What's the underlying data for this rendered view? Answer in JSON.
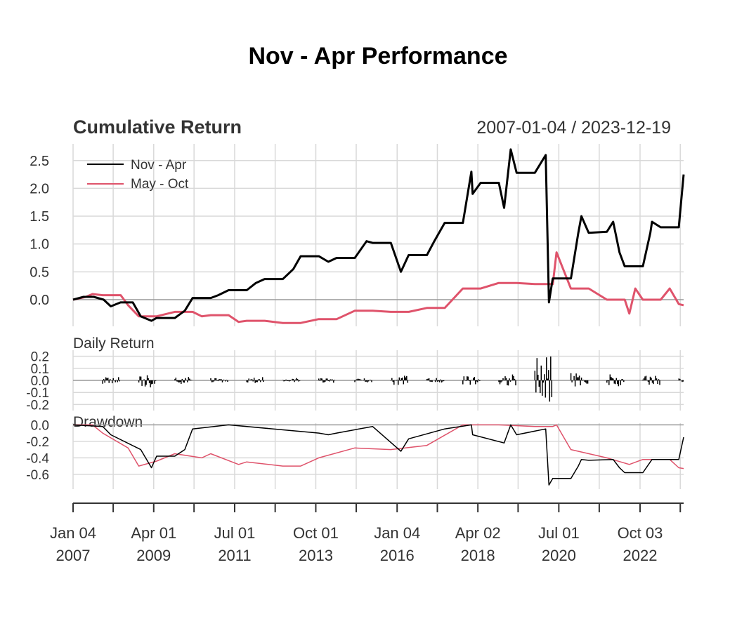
{
  "chart_data": {
    "type": "line",
    "title": "Nov - Apr Performance",
    "date_range": "2007-01-04 / 2023-12-19",
    "x_range": [
      "2007-01-04",
      "2023-12-19"
    ],
    "x_ticks": [
      {
        "date": "2007-01-04",
        "label_line1": "Jan 04",
        "label_line2": "2007"
      },
      {
        "date": "2008-02-15",
        "label_line1": "",
        "label_line2": ""
      },
      {
        "date": "2009-04-01",
        "label_line1": "Apr 01",
        "label_line2": "2009"
      },
      {
        "date": "2010-05-15",
        "label_line1": "",
        "label_line2": ""
      },
      {
        "date": "2011-07-01",
        "label_line1": "Jul 01",
        "label_line2": "2011"
      },
      {
        "date": "2012-08-15",
        "label_line1": "",
        "label_line2": ""
      },
      {
        "date": "2013-10-01",
        "label_line1": "Oct 01",
        "label_line2": "2013"
      },
      {
        "date": "2014-11-15",
        "label_line1": "",
        "label_line2": ""
      },
      {
        "date": "2016-01-04",
        "label_line1": "Jan 04",
        "label_line2": "2016"
      },
      {
        "date": "2017-02-15",
        "label_line1": "",
        "label_line2": ""
      },
      {
        "date": "2018-04-02",
        "label_line1": "Apr 02",
        "label_line2": "2018"
      },
      {
        "date": "2019-05-15",
        "label_line1": "",
        "label_line2": ""
      },
      {
        "date": "2020-07-01",
        "label_line1": "Jul 01",
        "label_line2": "2020"
      },
      {
        "date": "2021-08-15",
        "label_line1": "",
        "label_line2": ""
      },
      {
        "date": "2022-10-03",
        "label_line1": "Oct 03",
        "label_line2": "2022"
      },
      {
        "date": "2023-11-15",
        "label_line1": "",
        "label_line2": ""
      }
    ],
    "colors": {
      "nov_apr": "#000000",
      "may_oct": "#DF536B",
      "grid": "#d9d9d9",
      "zero": "#999999"
    },
    "panels": {
      "cumulative": {
        "title": "Cumulative Return",
        "ylim": [
          -0.48,
          2.8
        ],
        "yticks": [
          "0.0",
          "0.5",
          "1.0",
          "1.5",
          "2.0",
          "2.5"
        ],
        "legend": {
          "position": "top-left",
          "entries": [
            "Nov - Apr",
            "May - Oct"
          ]
        },
        "series": [
          {
            "name": "Nov - Apr",
            "points": [
              [
                "2007-01-04",
                0.0
              ],
              [
                "2007-04-20",
                0.05
              ],
              [
                "2007-08-01",
                0.05
              ],
              [
                "2007-11-10",
                0.0
              ],
              [
                "2008-01-22",
                -0.12
              ],
              [
                "2008-04-30",
                -0.05
              ],
              [
                "2008-09-01",
                -0.05
              ],
              [
                "2008-11-20",
                -0.3
              ],
              [
                "2009-03-09",
                -0.38
              ],
              [
                "2009-04-30",
                -0.33
              ],
              [
                "2009-11-01",
                -0.33
              ],
              [
                "2010-02-10",
                -0.2
              ],
              [
                "2010-04-30",
                0.03
              ],
              [
                "2010-11-01",
                0.03
              ],
              [
                "2011-01-15",
                0.08
              ],
              [
                "2011-04-30",
                0.17
              ],
              [
                "2011-11-01",
                0.17
              ],
              [
                "2012-02-01",
                0.3
              ],
              [
                "2012-04-30",
                0.37
              ],
              [
                "2012-11-01",
                0.37
              ],
              [
                "2013-02-15",
                0.55
              ],
              [
                "2013-04-30",
                0.78
              ],
              [
                "2013-11-01",
                0.78
              ],
              [
                "2014-02-05",
                0.68
              ],
              [
                "2014-04-30",
                0.75
              ],
              [
                "2014-11-01",
                0.75
              ],
              [
                "2015-02-28",
                1.05
              ],
              [
                "2015-04-30",
                1.02
              ],
              [
                "2015-11-01",
                1.02
              ],
              [
                "2016-02-11",
                0.5
              ],
              [
                "2016-04-30",
                0.8
              ],
              [
                "2016-11-01",
                0.8
              ],
              [
                "2017-01-15",
                1.05
              ],
              [
                "2017-04-30",
                1.38
              ],
              [
                "2017-11-01",
                1.38
              ],
              [
                "2018-01-26",
                2.3
              ],
              [
                "2018-02-08",
                1.9
              ],
              [
                "2018-04-30",
                2.1
              ],
              [
                "2018-11-01",
                2.1
              ],
              [
                "2018-12-24",
                1.65
              ],
              [
                "2019-03-01",
                2.7
              ],
              [
                "2019-04-30",
                2.28
              ],
              [
                "2019-11-01",
                2.28
              ],
              [
                "2020-02-19",
                2.6
              ],
              [
                "2020-03-23",
                -0.05
              ],
              [
                "2020-04-30",
                0.38
              ],
              [
                "2020-11-01",
                0.38
              ],
              [
                "2021-01-15",
                1.2
              ],
              [
                "2021-02-15",
                1.5
              ],
              [
                "2021-04-30",
                1.2
              ],
              [
                "2021-11-01",
                1.22
              ],
              [
                "2022-01-03",
                1.4
              ],
              [
                "2022-03-08",
                0.85
              ],
              [
                "2022-04-30",
                0.6
              ],
              [
                "2022-11-01",
                0.6
              ],
              [
                "2023-01-15",
                1.2
              ],
              [
                "2023-02-01",
                1.4
              ],
              [
                "2023-04-30",
                1.3
              ],
              [
                "2023-10-31",
                1.3
              ],
              [
                "2023-12-19",
                2.25
              ]
            ]
          },
          {
            "name": "May - Oct",
            "points": [
              [
                "2007-01-04",
                0.0
              ],
              [
                "2007-05-15",
                0.05
              ],
              [
                "2007-07-20",
                0.1
              ],
              [
                "2007-10-31",
                0.08
              ],
              [
                "2008-05-01",
                0.08
              ],
              [
                "2008-07-15",
                -0.1
              ],
              [
                "2008-10-31",
                -0.3
              ],
              [
                "2009-05-01",
                -0.3
              ],
              [
                "2009-10-31",
                -0.22
              ],
              [
                "2010-05-01",
                -0.22
              ],
              [
                "2010-08-01",
                -0.3
              ],
              [
                "2010-10-31",
                -0.28
              ],
              [
                "2011-05-01",
                -0.28
              ],
              [
                "2011-08-10",
                -0.4
              ],
              [
                "2011-10-31",
                -0.38
              ],
              [
                "2012-05-01",
                -0.38
              ],
              [
                "2012-10-31",
                -0.42
              ],
              [
                "2013-05-01",
                -0.42
              ],
              [
                "2013-10-31",
                -0.35
              ],
              [
                "2014-05-01",
                -0.35
              ],
              [
                "2014-10-31",
                -0.2
              ],
              [
                "2015-05-01",
                -0.2
              ],
              [
                "2015-10-31",
                -0.22
              ],
              [
                "2016-05-01",
                -0.22
              ],
              [
                "2016-10-31",
                -0.15
              ],
              [
                "2017-05-01",
                -0.15
              ],
              [
                "2017-10-31",
                0.2
              ],
              [
                "2018-05-01",
                0.2
              ],
              [
                "2018-10-31",
                0.3
              ],
              [
                "2019-05-01",
                0.3
              ],
              [
                "2019-10-31",
                0.28
              ],
              [
                "2020-05-01",
                0.28
              ],
              [
                "2020-06-08",
                0.85
              ],
              [
                "2020-10-31",
                0.2
              ],
              [
                "2021-05-01",
                0.2
              ],
              [
                "2021-10-31",
                0.0
              ],
              [
                "2022-05-01",
                0.0
              ],
              [
                "2022-06-16",
                -0.25
              ],
              [
                "2022-08-16",
                0.2
              ],
              [
                "2022-10-31",
                0.0
              ],
              [
                "2023-05-01",
                0.0
              ],
              [
                "2023-07-31",
                0.2
              ],
              [
                "2023-10-31",
                -0.08
              ],
              [
                "2023-12-19",
                -0.1
              ]
            ]
          }
        ]
      },
      "daily_return": {
        "title": "Daily Return",
        "ylim": [
          -0.25,
          0.25
        ],
        "yticks": [
          "0.2",
          "0.1",
          "0.0",
          "-0.1",
          "-0.2"
        ],
        "series": [
          {
            "name": "Nov - Apr",
            "active_windows": [
              [
                "2007-11-01",
                "2008-04-30",
                0.03
              ],
              [
                "2008-11-01",
                "2009-04-30",
                0.06
              ],
              [
                "2009-11-01",
                "2010-04-30",
                0.03
              ],
              [
                "2010-11-01",
                "2011-04-30",
                0.02
              ],
              [
                "2011-11-01",
                "2012-04-30",
                0.03
              ],
              [
                "2012-11-01",
                "2013-04-30",
                0.02
              ],
              [
                "2013-11-01",
                "2014-04-30",
                0.02
              ],
              [
                "2014-11-01",
                "2015-04-30",
                0.02
              ],
              [
                "2015-11-01",
                "2016-04-30",
                0.04
              ],
              [
                "2016-11-01",
                "2017-04-30",
                0.02
              ],
              [
                "2017-11-01",
                "2018-04-30",
                0.04
              ],
              [
                "2018-11-01",
                "2019-04-30",
                0.05
              ],
              [
                "2019-11-01",
                "2020-04-30",
                0.22
              ],
              [
                "2020-11-01",
                "2021-04-30",
                0.06
              ],
              [
                "2021-11-01",
                "2022-04-30",
                0.05
              ],
              [
                "2022-11-01",
                "2023-04-30",
                0.04
              ],
              [
                "2023-11-01",
                "2023-12-19",
                0.02
              ]
            ]
          }
        ]
      },
      "drawdown": {
        "title": "Drawdown",
        "ylim": [
          -0.78,
          0.02
        ],
        "yticks": [
          "0.0",
          "-0.2",
          "-0.4",
          "-0.6"
        ],
        "series": [
          {
            "name": "Nov - Apr",
            "points": [
              [
                "2007-01-04",
                0.0
              ],
              [
                "2007-11-01",
                -0.02
              ],
              [
                "2008-01-22",
                -0.12
              ],
              [
                "2008-11-20",
                -0.3
              ],
              [
                "2009-03-09",
                -0.52
              ],
              [
                "2009-04-30",
                -0.38
              ],
              [
                "2009-11-01",
                -0.38
              ],
              [
                "2010-02-10",
                -0.3
              ],
              [
                "2010-04-30",
                -0.05
              ],
              [
                "2011-04-30",
                0.0
              ],
              [
                "2013-11-01",
                -0.1
              ],
              [
                "2014-02-05",
                -0.12
              ],
              [
                "2014-04-30",
                -0.1
              ],
              [
                "2015-04-30",
                -0.02
              ],
              [
                "2016-02-11",
                -0.32
              ],
              [
                "2016-04-30",
                -0.17
              ],
              [
                "2017-04-30",
                -0.05
              ],
              [
                "2018-01-26",
                0.0
              ],
              [
                "2018-02-08",
                -0.12
              ],
              [
                "2018-12-24",
                -0.22
              ],
              [
                "2019-03-01",
                0.0
              ],
              [
                "2019-04-30",
                -0.12
              ],
              [
                "2020-02-19",
                -0.05
              ],
              [
                "2020-03-23",
                -0.73
              ],
              [
                "2020-04-30",
                -0.65
              ],
              [
                "2020-11-01",
                -0.65
              ],
              [
                "2021-01-15",
                -0.5
              ],
              [
                "2021-02-15",
                -0.42
              ],
              [
                "2021-04-30",
                -0.43
              ],
              [
                "2022-01-03",
                -0.42
              ],
              [
                "2022-03-08",
                -0.52
              ],
              [
                "2022-04-30",
                -0.58
              ],
              [
                "2022-11-01",
                -0.58
              ],
              [
                "2023-02-01",
                -0.42
              ],
              [
                "2023-10-31",
                -0.42
              ],
              [
                "2023-12-19",
                -0.15
              ]
            ]
          },
          {
            "name": "May - Oct",
            "points": [
              [
                "2007-01-04",
                0.0
              ],
              [
                "2007-07-20",
                0.0
              ],
              [
                "2007-10-31",
                -0.1
              ],
              [
                "2008-07-15",
                -0.28
              ],
              [
                "2008-10-31",
                -0.5
              ],
              [
                "2009-05-01",
                -0.44
              ],
              [
                "2009-10-31",
                -0.35
              ],
              [
                "2010-08-01",
                -0.4
              ],
              [
                "2010-10-31",
                -0.35
              ],
              [
                "2011-08-10",
                -0.48
              ],
              [
                "2011-10-31",
                -0.45
              ],
              [
                "2012-10-31",
                -0.5
              ],
              [
                "2013-05-01",
                -0.5
              ],
              [
                "2013-10-31",
                -0.4
              ],
              [
                "2014-10-31",
                -0.28
              ],
              [
                "2015-10-31",
                -0.3
              ],
              [
                "2016-10-31",
                -0.25
              ],
              [
                "2017-10-31",
                0.0
              ],
              [
                "2018-10-31",
                0.0
              ],
              [
                "2019-10-31",
                -0.02
              ],
              [
                "2020-05-01",
                -0.02
              ],
              [
                "2020-06-08",
                0.0
              ],
              [
                "2020-10-31",
                -0.3
              ],
              [
                "2021-10-31",
                -0.4
              ],
              [
                "2022-06-16",
                -0.48
              ],
              [
                "2022-10-31",
                -0.42
              ],
              [
                "2023-07-31",
                -0.42
              ],
              [
                "2023-10-31",
                -0.52
              ],
              [
                "2023-12-19",
                -0.53
              ]
            ]
          }
        ]
      }
    }
  }
}
